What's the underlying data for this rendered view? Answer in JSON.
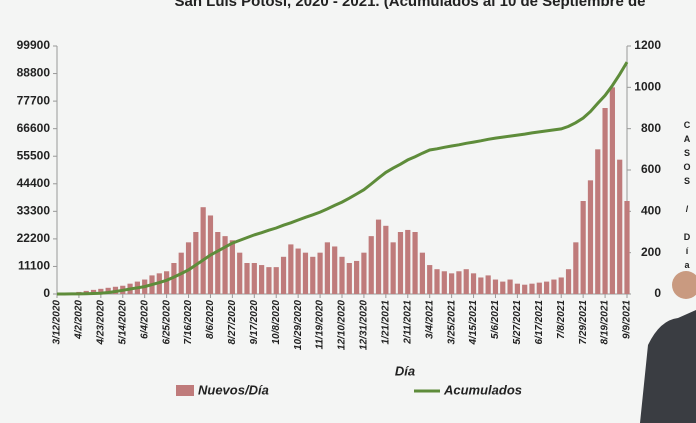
{
  "chart_data": {
    "type": "bar",
    "title": "San Luis Potosí, 2020 - 2021. (Acumulados al 10 de Septiembre de",
    "x_label": "Día",
    "y2_label": "CASOS / Día",
    "categories": [
      "3/12/2020",
      null,
      null,
      "4/2/2020",
      null,
      null,
      "4/23/2020",
      null,
      null,
      "5/14/2020",
      null,
      null,
      "6/4/2020",
      null,
      null,
      "6/25/2020",
      null,
      null,
      "7/16/2020",
      null,
      null,
      "8/6/2020",
      null,
      null,
      "8/27/2020",
      null,
      null,
      "9/17/2020",
      null,
      null,
      "10/8/2020",
      null,
      null,
      "10/29/2020",
      null,
      null,
      "11/19/2020",
      null,
      null,
      "12/10/2020",
      null,
      null,
      "12/31/2020",
      null,
      null,
      "1/21/2021",
      null,
      null,
      "2/11/2021",
      null,
      null,
      "3/4/2021",
      null,
      null,
      "3/25/2021",
      null,
      null,
      "4/15/2021",
      null,
      null,
      "5/6/2021",
      null,
      null,
      "5/27/2021",
      null,
      null,
      "6/17/2021",
      null,
      null,
      "7/8/2021",
      null,
      null,
      "7/29/2021",
      null,
      null,
      "8/19/2021",
      null,
      null,
      "9/9/2021"
    ],
    "series": [
      {
        "name": "Nuevos/Día",
        "type": "bar",
        "axis": "y2",
        "color": "#bf7b7b",
        "values": [
          0,
          2,
          5,
          10,
          15,
          20,
          25,
          30,
          35,
          40,
          50,
          60,
          70,
          90,
          100,
          110,
          150,
          200,
          250,
          300,
          420,
          380,
          300,
          280,
          260,
          200,
          150,
          150,
          140,
          130,
          130,
          180,
          240,
          220,
          200,
          180,
          200,
          250,
          230,
          180,
          150,
          160,
          200,
          280,
          360,
          330,
          250,
          300,
          310,
          300,
          200,
          140,
          120,
          110,
          100,
          110,
          120,
          100,
          80,
          90,
          70,
          60,
          70,
          50,
          45,
          50,
          55,
          60,
          70,
          80,
          120,
          250,
          450,
          550,
          700,
          900,
          1000,
          650,
          450
        ]
      },
      {
        "name": "Acumulados",
        "type": "line",
        "axis": "y",
        "color": "#5e8c3a",
        "values": [
          0,
          10,
          30,
          50,
          120,
          200,
          300,
          600,
          1000,
          1500,
          2000,
          2500,
          3000,
          3800,
          4600,
          5500,
          6800,
          8200,
          9700,
          11700,
          13700,
          15700,
          17300,
          18900,
          20500,
          21600,
          22700,
          23800,
          24700,
          25700,
          26600,
          27700,
          28700,
          29800,
          30900,
          31900,
          33000,
          34300,
          35700,
          37000,
          38600,
          40300,
          42000,
          44300,
          46700,
          49000,
          50700,
          52300,
          54000,
          55300,
          56700,
          58000,
          58500,
          59100,
          59600,
          60100,
          60700,
          61200,
          61700,
          62300,
          62800,
          63200,
          63600,
          64000,
          64400,
          64900,
          65300,
          65700,
          66100,
          66500,
          67500,
          69000,
          70900,
          73500,
          76800,
          80000,
          84000,
          88500,
          93400
        ]
      }
    ],
    "ylim": [
      0,
      99900
    ],
    "yticks": [
      0,
      11100,
      22200,
      33300,
      44400,
      55500,
      66600,
      77700,
      88800,
      99900
    ],
    "y2lim": [
      0,
      1200
    ],
    "y2ticks": [
      0,
      200,
      400,
      600,
      800,
      1000,
      1200
    ],
    "grid": false,
    "legend": "bottom"
  }
}
